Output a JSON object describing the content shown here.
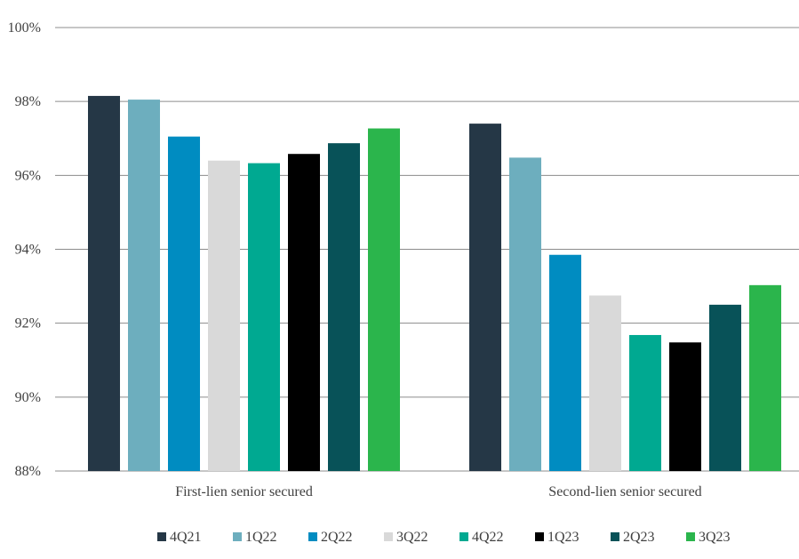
{
  "chart_data": {
    "type": "bar",
    "categories": [
      "First-lien senior secured",
      "Second-lien senior secured"
    ],
    "series": [
      {
        "name": "4Q21",
        "color": "#253746",
        "values": [
          98.15,
          97.4
        ]
      },
      {
        "name": "1Q22",
        "color": "#6DAEBE",
        "values": [
          98.05,
          96.48
        ]
      },
      {
        "name": "2Q22",
        "color": "#008CC1",
        "values": [
          97.05,
          93.85
        ]
      },
      {
        "name": "3Q22",
        "color": "#D9D9D9",
        "values": [
          96.4,
          92.75
        ]
      },
      {
        "name": "4Q22",
        "color": "#00A991",
        "values": [
          96.33,
          91.68
        ]
      },
      {
        "name": "1Q23",
        "color": "#000000",
        "values": [
          96.58,
          91.48
        ]
      },
      {
        "name": "2Q23",
        "color": "#085258",
        "values": [
          96.87,
          92.5
        ]
      },
      {
        "name": "3Q23",
        "color": "#2BB54C",
        "values": [
          97.27,
          93.03
        ]
      }
    ],
    "ylim": [
      88,
      100
    ],
    "yticks": [
      88,
      90,
      92,
      94,
      96,
      98,
      100
    ],
    "ytick_labels": [
      "88%",
      "90%",
      "92%",
      "94%",
      "96%",
      "98%",
      "100%"
    ],
    "title": "",
    "xlabel": "",
    "ylabel": "",
    "grid": true,
    "legend_position": "bottom"
  }
}
